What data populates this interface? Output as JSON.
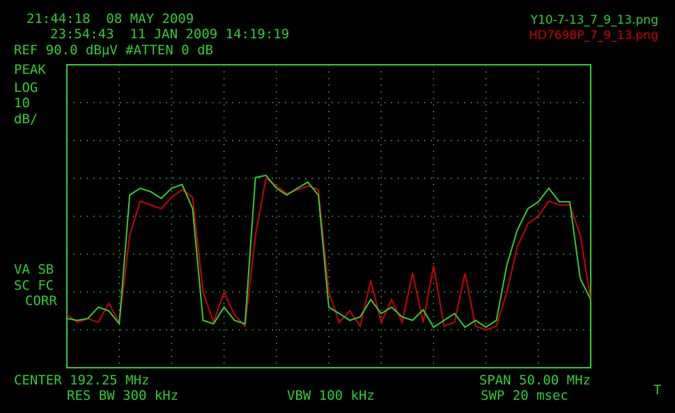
{
  "chart_data": {
    "type": "line",
    "annotations": [
      "21:44:18  08 MAY 2009",
      "23:54:43  11 JAN 2009 14:19:19",
      "REF 90.0 dBµV #ATTEN 0 dB",
      "PEAK",
      "LOG",
      "10",
      "dB/",
      "VA SB",
      "SC FC",
      "CORR",
      "CENTER 192.25 MHz",
      "SPAN 50.00 MHz",
      "RES BW 300 kHz",
      "VBW 100 kHz",
      "SWP 20 msec",
      "T"
    ],
    "x": [
      167.25,
      168.25,
      169.25,
      170.25,
      171.25,
      172.25,
      173.25,
      174.25,
      175.25,
      176.25,
      177.25,
      178.25,
      179.25,
      180.25,
      181.25,
      182.25,
      183.25,
      184.25,
      185.25,
      186.25,
      187.25,
      188.25,
      189.25,
      190.25,
      191.25,
      192.25,
      193.25,
      194.25,
      195.25,
      196.25,
      197.25,
      198.25,
      199.25,
      200.25,
      201.25,
      202.25,
      203.25,
      204.25,
      205.25,
      206.25,
      207.25,
      208.25,
      209.25,
      210.25,
      211.25,
      212.25,
      213.25,
      214.25,
      215.25,
      216.25,
      217.25
    ],
    "series": [
      {
        "name": "Y10-7-13_7_9_13.png",
        "color": "#33cc33",
        "values": [
          23,
          22.5,
          23,
          26,
          25,
          21.6,
          55.6,
          57.4,
          56.5,
          54.7,
          57.4,
          58.4,
          52,
          22.5,
          21.6,
          26,
          22.5,
          21.6,
          60.2,
          60.8,
          57.4,
          55.6,
          57.4,
          59,
          55.6,
          26,
          24.3,
          22.5,
          23.4,
          28,
          24.3,
          26,
          23.4,
          22.5,
          25.3,
          20.7,
          22.5,
          24.3,
          20.7,
          22.5,
          20.7,
          22.5,
          37.2,
          46.4,
          52,
          53.8,
          57.4,
          53.8,
          53.8,
          33.5,
          28
        ]
      },
      {
        "name": "HD7698P_7_9_13.png",
        "color": "#cc0000",
        "values": [
          24,
          22,
          23,
          22,
          27,
          22,
          45,
          54,
          53,
          52,
          55,
          57,
          55,
          30,
          22,
          30,
          24,
          21,
          45,
          60,
          58,
          56,
          57,
          58,
          57,
          30,
          22,
          25,
          21,
          33,
          22,
          28,
          22,
          35,
          22,
          37,
          21,
          22,
          35,
          21,
          20,
          21,
          30,
          42,
          48,
          50,
          54,
          53,
          53,
          45,
          28
        ]
      }
    ],
    "xlim": [
      167.25,
      217.25
    ],
    "ylim": [
      10,
      90
    ],
    "grid": true
  }
}
